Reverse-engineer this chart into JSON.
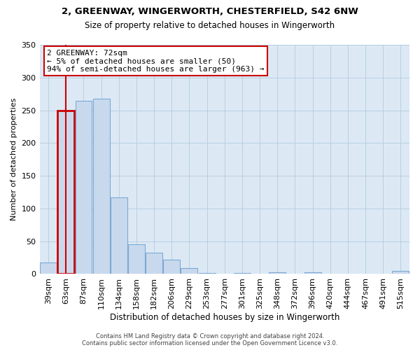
{
  "title": "2, GREENWAY, WINGERWORTH, CHESTERFIELD, S42 6NW",
  "subtitle": "Size of property relative to detached houses in Wingerworth",
  "xlabel": "Distribution of detached houses by size in Wingerworth",
  "ylabel": "Number of detached properties",
  "bar_labels": [
    "39sqm",
    "63sqm",
    "87sqm",
    "110sqm",
    "134sqm",
    "158sqm",
    "182sqm",
    "206sqm",
    "229sqm",
    "253sqm",
    "277sqm",
    "301sqm",
    "325sqm",
    "348sqm",
    "372sqm",
    "396sqm",
    "420sqm",
    "444sqm",
    "467sqm",
    "491sqm",
    "515sqm"
  ],
  "bar_values": [
    18,
    250,
    265,
    268,
    117,
    45,
    33,
    22,
    9,
    2,
    0,
    2,
    0,
    3,
    0,
    3,
    0,
    0,
    0,
    0,
    5
  ],
  "bar_color": "#c9d9ed",
  "bar_edge_color": "#7ca8d5",
  "highlight_bar_index": 1,
  "highlight_color": "#cc0000",
  "plot_bg_color": "#dce9f5",
  "ylim": [
    0,
    350
  ],
  "yticks": [
    0,
    50,
    100,
    150,
    200,
    250,
    300,
    350
  ],
  "annotation_title": "2 GREENWAY: 72sqm",
  "annotation_line1": "← 5% of detached houses are smaller (50)",
  "annotation_line2": "94% of semi-detached houses are larger (963) →",
  "annotation_box_color": "#ffffff",
  "annotation_box_edge_color": "#cc0000",
  "footer_line1": "Contains HM Land Registry data © Crown copyright and database right 2024.",
  "footer_line2": "Contains public sector information licensed under the Open Government Licence v3.0.",
  "background_color": "#ffffff",
  "grid_color": "#b8cfe0"
}
